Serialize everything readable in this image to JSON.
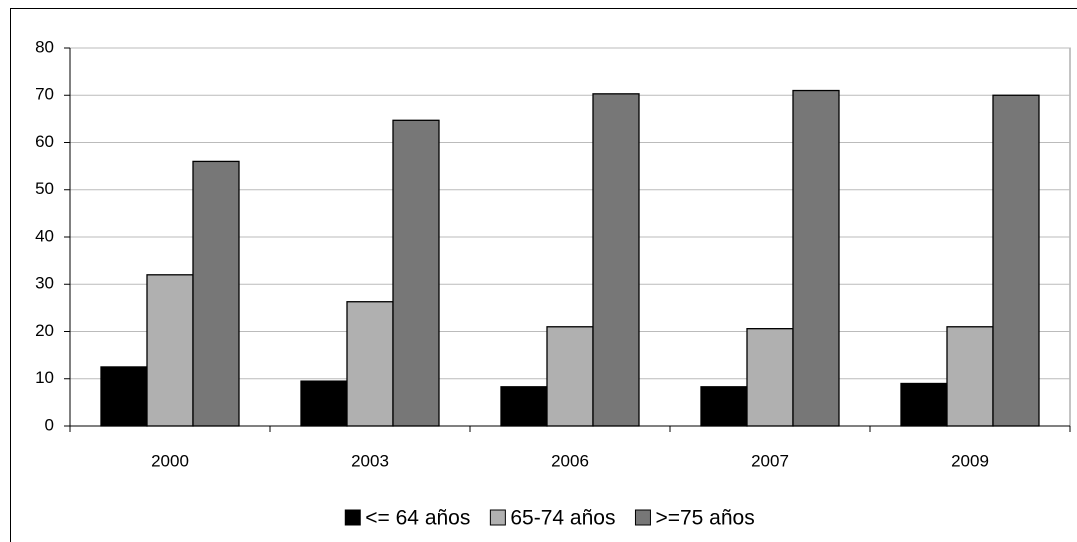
{
  "chart_data": {
    "type": "bar",
    "categories": [
      "2000",
      "2003",
      "2006",
      "2007",
      "2009"
    ],
    "series": [
      {
        "name": "<= 64 años",
        "color": "#000000",
        "values": [
          12.5,
          9.5,
          8.3,
          8.3,
          9
        ]
      },
      {
        "name": "65-74 años",
        "color": "#b0b0b0",
        "values": [
          32,
          26.3,
          21,
          20.6,
          21
        ]
      },
      {
        "name": ">=75 años",
        "color": "#777777",
        "values": [
          56,
          64.7,
          70.3,
          71,
          70
        ]
      }
    ],
    "ylim": [
      0,
      80
    ],
    "yticks": [
      0,
      10,
      20,
      30,
      40,
      50,
      60,
      70,
      80
    ],
    "grid": true,
    "legend": "bottom"
  }
}
